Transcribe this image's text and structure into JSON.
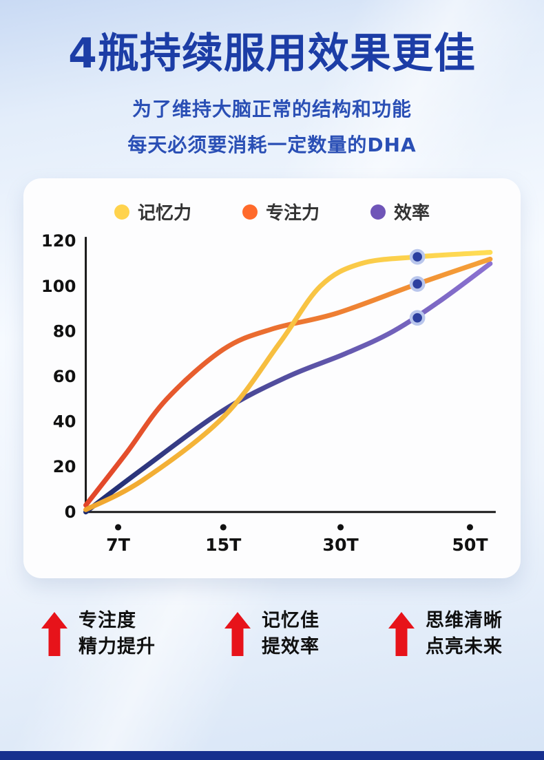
{
  "header": {
    "title": "4瓶持续服用效果更佳",
    "subtitle_line1": "为了维持大脑正常的结构和功能",
    "subtitle_line2": "每天必须要消耗一定数量的DHA"
  },
  "chart_data": {
    "type": "line",
    "title": "",
    "categories": [
      "7T",
      "15T",
      "30T",
      "50T"
    ],
    "category_x": [
      8,
      34,
      63,
      95
    ],
    "ylim": [
      0,
      120
    ],
    "yticks": [
      0,
      20,
      40,
      60,
      80,
      100,
      120
    ],
    "grid": false,
    "legend_position": "top",
    "series": [
      {
        "name": "记忆力",
        "legend_color": "#FFD34D",
        "color_start": "#F0A52E",
        "color_end": "#FFDD55",
        "points": [
          [
            0,
            1
          ],
          [
            14,
            14
          ],
          [
            34,
            42
          ],
          [
            48,
            75
          ],
          [
            58,
            100
          ],
          [
            68,
            110
          ],
          [
            82,
            113
          ],
          [
            100,
            115
          ]
        ]
      },
      {
        "name": "专注力",
        "legend_color": "#FF6A2B",
        "color_start": "#E2452A",
        "color_end": "#F5A238",
        "points": [
          [
            0,
            3
          ],
          [
            10,
            26
          ],
          [
            20,
            50
          ],
          [
            34,
            72
          ],
          [
            46,
            81
          ],
          [
            62,
            88
          ],
          [
            82,
            101
          ],
          [
            100,
            112
          ]
        ]
      },
      {
        "name": "效率",
        "legend_color": "#6F55B8",
        "color_start": "#1D2C6F",
        "color_end": "#8C72D2",
        "points": [
          [
            0,
            0
          ],
          [
            14,
            19
          ],
          [
            34,
            45
          ],
          [
            50,
            60
          ],
          [
            64,
            70
          ],
          [
            76,
            80
          ],
          [
            88,
            94
          ],
          [
            100,
            110
          ]
        ]
      }
    ],
    "markers": [
      {
        "x": 82,
        "value": 113
      },
      {
        "x": 82,
        "value": 101
      },
      {
        "x": 82,
        "value": 86
      }
    ],
    "marker_color": "#2B3F9F",
    "marker_ring_color": "#B9C6EC",
    "axis_color": "#1a1a1a"
  },
  "benefits": [
    {
      "line1": "专注度",
      "line2": "精力提升"
    },
    {
      "line1": "记忆佳",
      "line2": "提效率"
    },
    {
      "line1": "思维清晰",
      "line2": "点亮未来"
    }
  ],
  "colors": {
    "title": "#1C3DA6",
    "subtitle": "#2A4FB5",
    "arrow_red": "#E7131A",
    "footer_bar": "#16308E"
  }
}
